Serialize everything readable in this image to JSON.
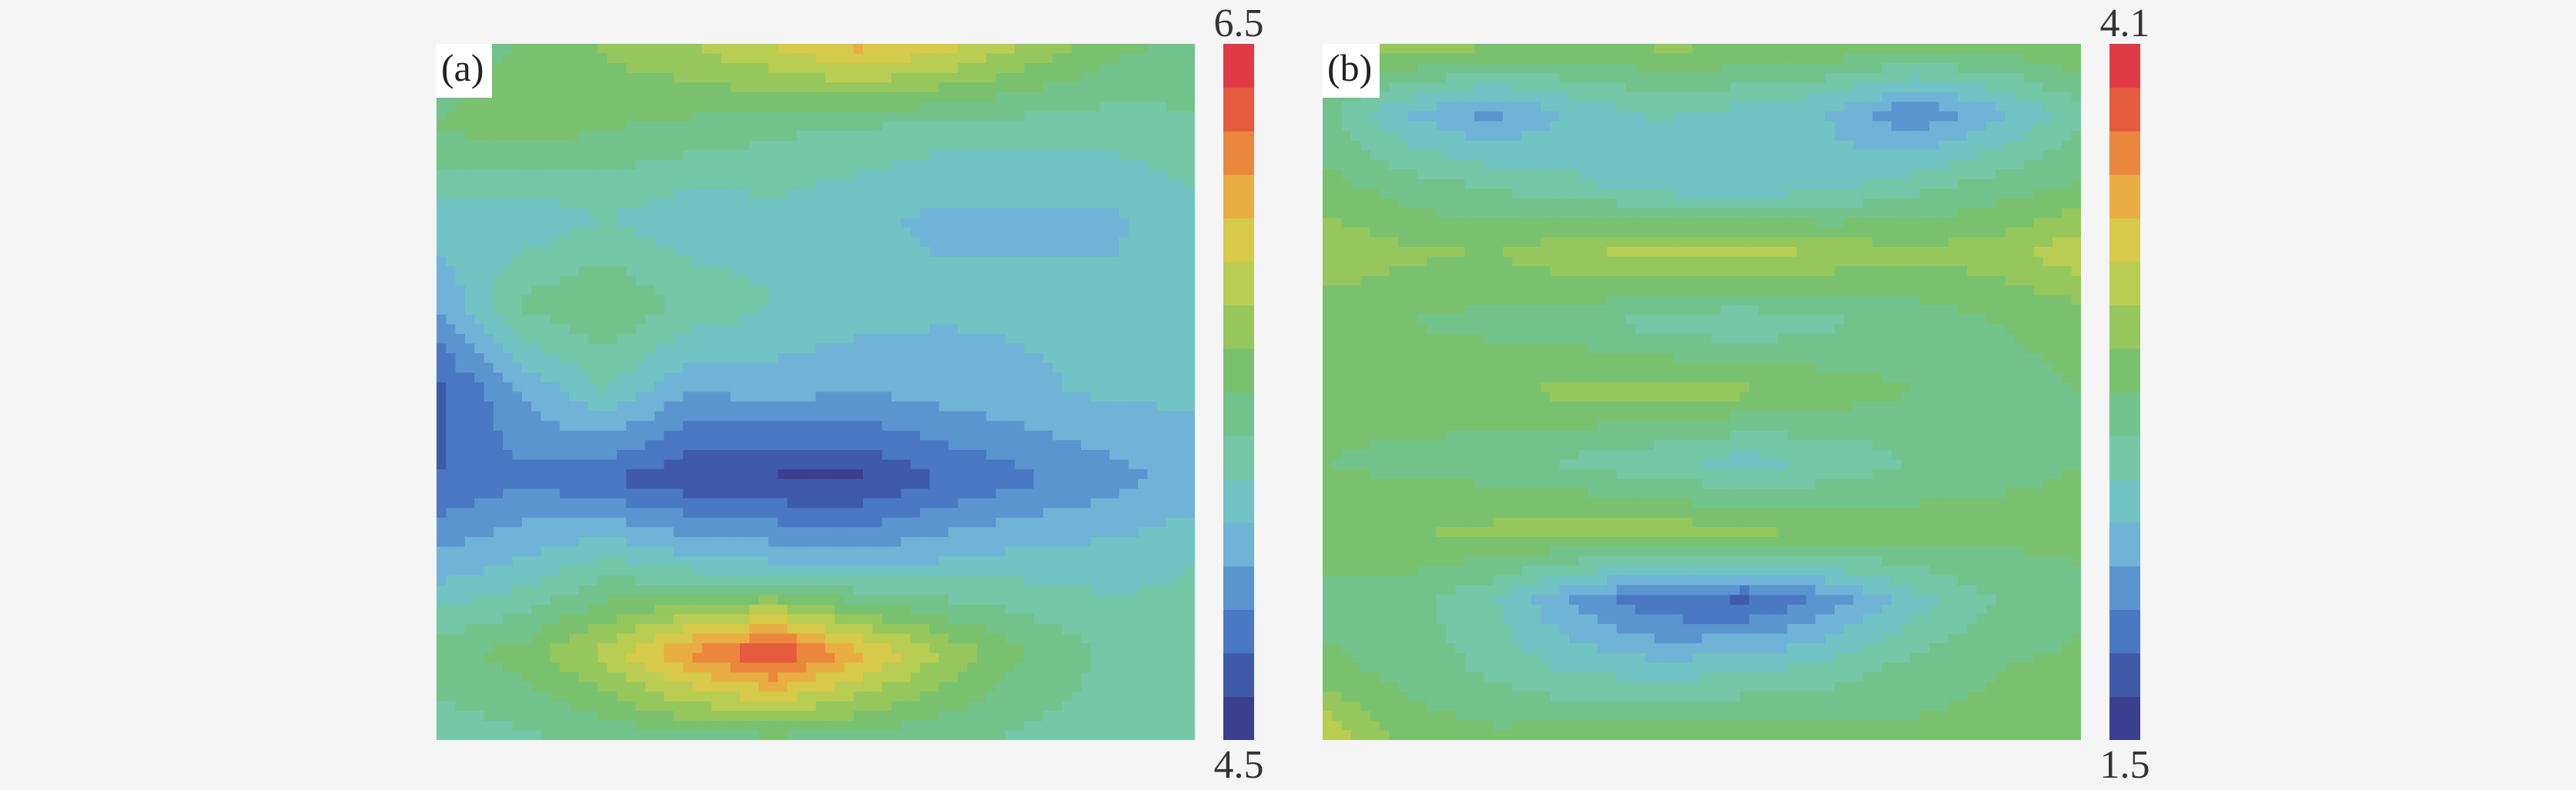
{
  "chart_data": [
    {
      "type": "heatmap",
      "panel_label": "(a)",
      "colorbar": {
        "min": 4.5,
        "max": 6.5,
        "max_label": "6.5",
        "min_label": "4.5"
      },
      "rows": 9,
      "cols": 10,
      "z": [
        [
          5.45,
          5.5,
          5.65,
          5.75,
          5.9,
          6.05,
          5.95,
          5.75,
          5.55,
          5.45
        ],
        [
          5.5,
          5.55,
          5.5,
          5.45,
          5.4,
          5.35,
          5.3,
          5.3,
          5.3,
          5.35
        ],
        [
          5.2,
          5.15,
          5.25,
          5.15,
          5.2,
          5.15,
          5.1,
          5.1,
          5.1,
          5.2
        ],
        [
          5.0,
          5.4,
          5.5,
          5.35,
          5.25,
          5.2,
          5.15,
          5.15,
          5.15,
          5.2
        ],
        [
          4.7,
          5.0,
          5.25,
          5.0,
          5.05,
          5.0,
          5.05,
          5.1,
          5.15,
          5.15
        ],
        [
          4.75,
          4.85,
          4.75,
          4.65,
          4.6,
          4.6,
          4.75,
          4.85,
          4.95,
          5.05
        ],
        [
          5.05,
          5.15,
          5.3,
          5.2,
          5.15,
          5.1,
          5.15,
          5.2,
          5.2,
          5.25
        ],
        [
          5.45,
          5.55,
          5.8,
          6.15,
          6.4,
          6.05,
          5.75,
          5.5,
          5.35,
          5.3
        ],
        [
          5.3,
          5.35,
          5.4,
          5.45,
          5.45,
          5.45,
          5.4,
          5.35,
          5.3,
          5.25
        ]
      ]
    },
    {
      "type": "heatmap",
      "panel_label": "(b)",
      "colorbar": {
        "min": 1.5,
        "max": 4.1,
        "max_label": "4.1",
        "min_label": "1.5"
      },
      "rows": 11,
      "cols": 10,
      "z": [
        [
          3.0,
          3.1,
          3.0,
          2.95,
          3.0,
          3.0,
          2.95,
          2.9,
          2.9,
          2.95
        ],
        [
          2.7,
          2.3,
          2.1,
          2.35,
          2.5,
          2.4,
          2.3,
          2.0,
          2.25,
          2.6
        ],
        [
          2.85,
          2.7,
          2.6,
          2.5,
          2.35,
          2.3,
          2.4,
          2.55,
          2.7,
          2.8
        ],
        [
          3.1,
          3.0,
          2.95,
          3.1,
          3.2,
          3.2,
          3.1,
          3.0,
          3.05,
          3.25
        ],
        [
          2.85,
          2.8,
          2.75,
          2.7,
          2.55,
          2.5,
          2.6,
          2.7,
          2.8,
          2.85
        ],
        [
          2.9,
          2.9,
          2.95,
          3.0,
          3.05,
          3.0,
          2.9,
          2.8,
          2.75,
          2.8
        ],
        [
          2.8,
          2.75,
          2.7,
          2.6,
          2.5,
          2.4,
          2.5,
          2.65,
          2.75,
          2.8
        ],
        [
          2.9,
          2.95,
          3.0,
          3.05,
          3.05,
          3.0,
          2.95,
          2.9,
          2.85,
          2.85
        ],
        [
          2.75,
          2.7,
          2.5,
          2.1,
          1.85,
          1.8,
          2.05,
          2.4,
          2.65,
          2.75
        ],
        [
          2.85,
          2.75,
          2.6,
          2.45,
          2.4,
          2.45,
          2.55,
          2.7,
          2.8,
          2.85
        ],
        [
          3.3,
          2.9,
          2.85,
          2.9,
          2.95,
          2.95,
          2.9,
          2.85,
          2.85,
          2.9
        ]
      ]
    }
  ]
}
